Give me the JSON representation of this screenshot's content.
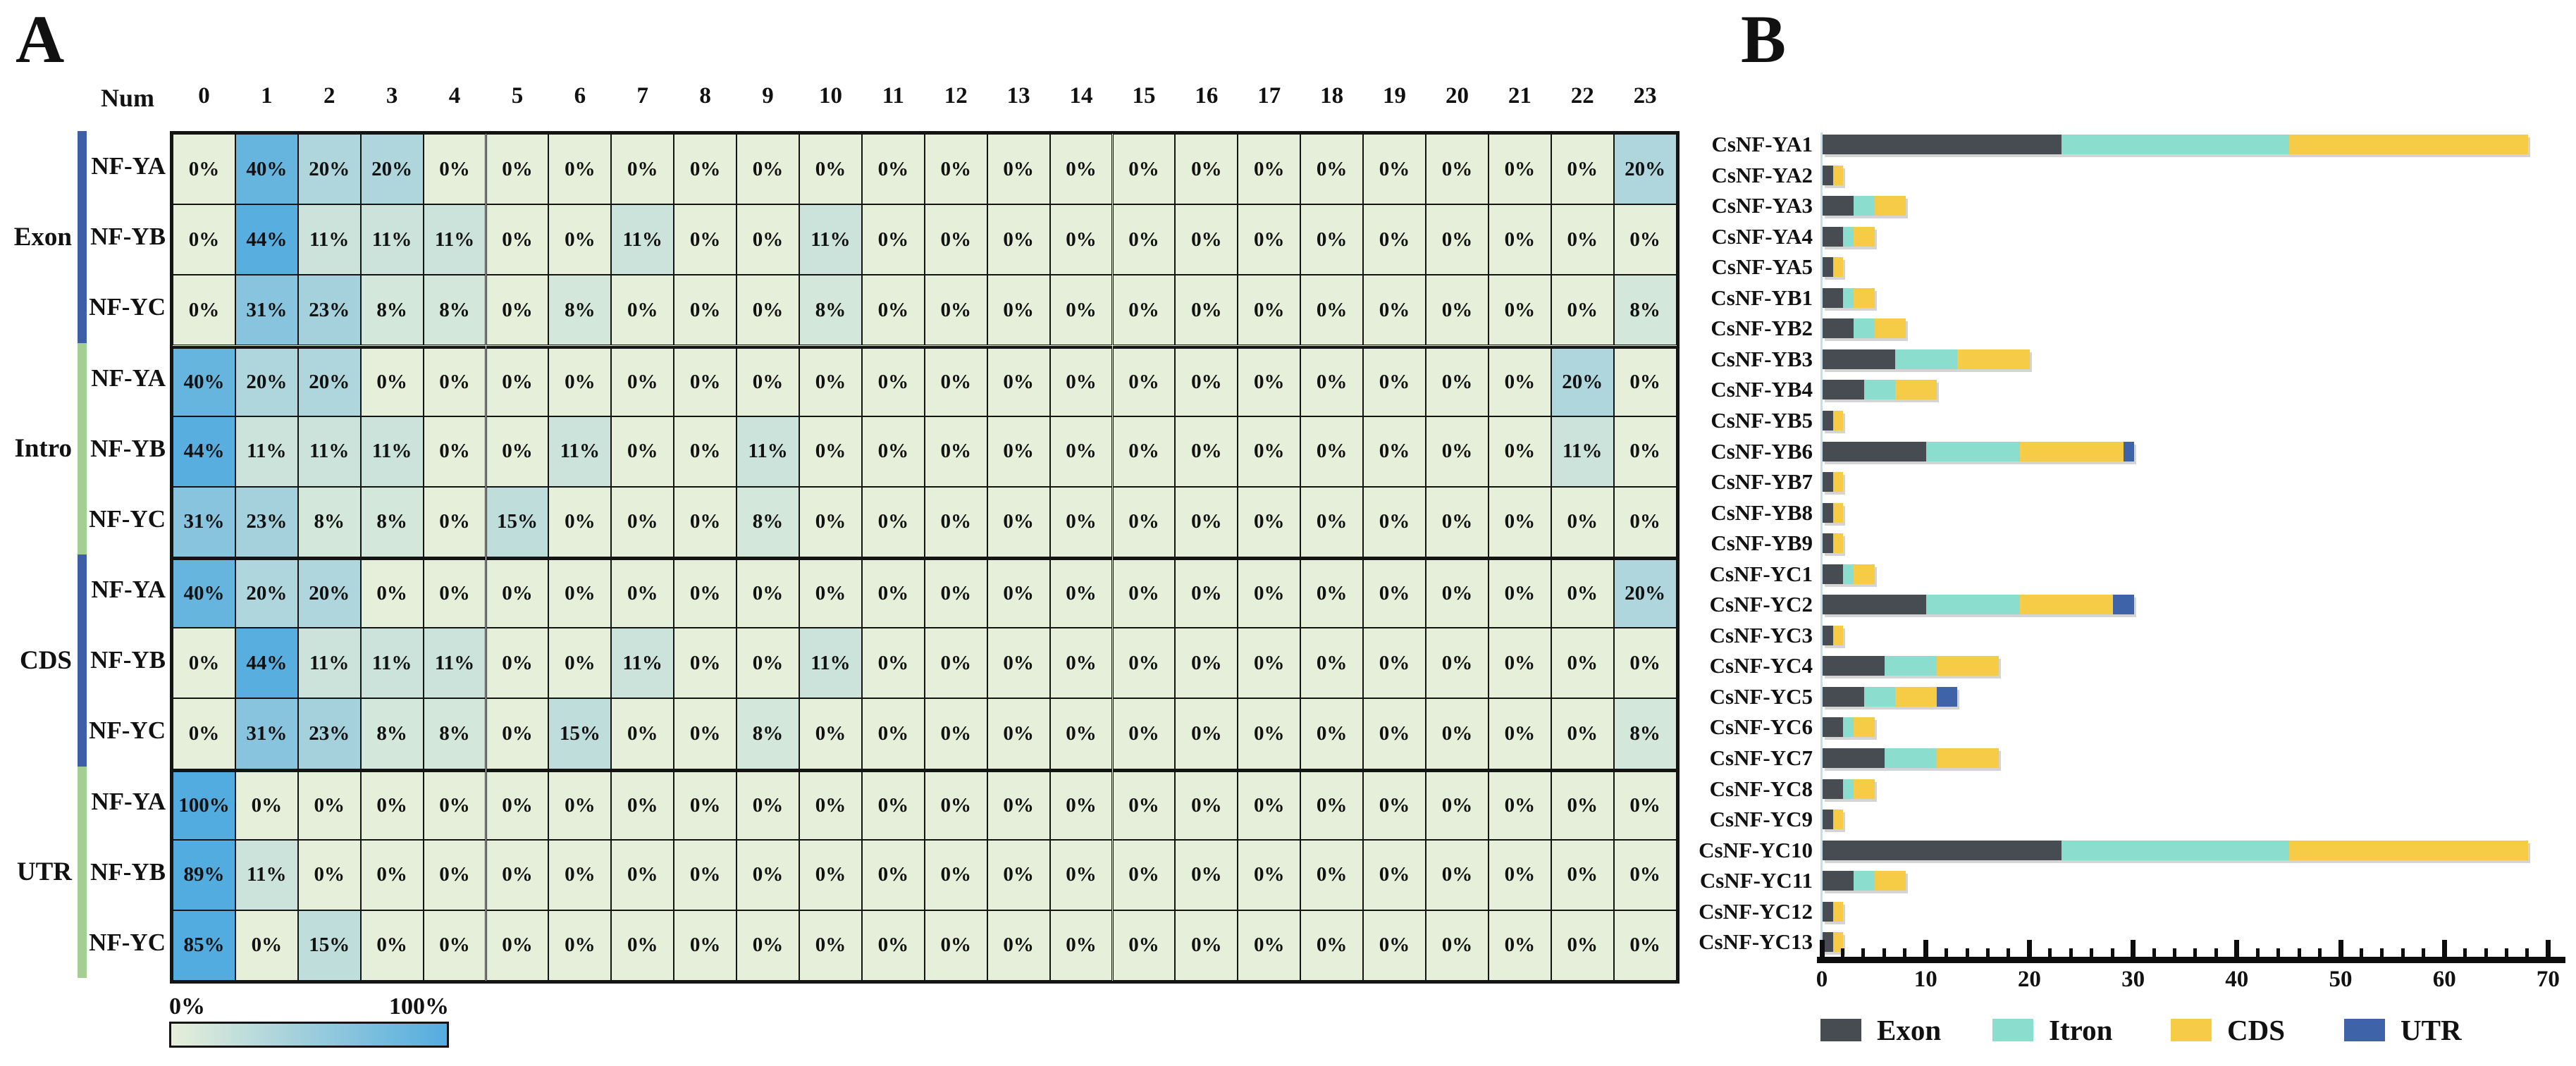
{
  "figure": {
    "panel_a_label": "A",
    "panel_b_label": "B"
  },
  "chart_data": [
    {
      "type": "heatmap",
      "panel_label": "A",
      "corner_label": "Num",
      "columns": [
        0,
        1,
        2,
        3,
        4,
        5,
        6,
        7,
        8,
        9,
        10,
        11,
        12,
        13,
        14,
        15,
        16,
        17,
        18,
        19,
        20,
        21,
        22,
        23
      ],
      "row_groups": [
        {
          "name": "Exon",
          "strip_color": "#3D5FA8"
        },
        {
          "name": "Intro",
          "strip_color": "#A5CF92"
        },
        {
          "name": "CDS",
          "strip_color": "#3D5FA8"
        },
        {
          "name": "UTR",
          "strip_color": "#A5CF92"
        }
      ],
      "rows": [
        {
          "group": "Exon",
          "label": "NF-YA",
          "values": [
            0,
            40,
            20,
            20,
            0,
            0,
            0,
            0,
            0,
            0,
            0,
            0,
            0,
            0,
            0,
            0,
            0,
            0,
            0,
            0,
            0,
            0,
            0,
            20
          ]
        },
        {
          "group": "Exon",
          "label": "NF-YB",
          "values": [
            0,
            44,
            11,
            11,
            11,
            0,
            0,
            11,
            0,
            0,
            11,
            0,
            0,
            0,
            0,
            0,
            0,
            0,
            0,
            0,
            0,
            0,
            0,
            0
          ]
        },
        {
          "group": "Exon",
          "label": "NF-YC",
          "values": [
            0,
            31,
            23,
            8,
            8,
            0,
            8,
            0,
            0,
            0,
            8,
            0,
            0,
            0,
            0,
            0,
            0,
            0,
            0,
            0,
            0,
            0,
            0,
            8
          ]
        },
        {
          "group": "Intro",
          "label": "NF-YA",
          "values": [
            40,
            20,
            20,
            0,
            0,
            0,
            0,
            0,
            0,
            0,
            0,
            0,
            0,
            0,
            0,
            0,
            0,
            0,
            0,
            0,
            0,
            0,
            20,
            0
          ]
        },
        {
          "group": "Intro",
          "label": "NF-YB",
          "values": [
            44,
            11,
            11,
            11,
            0,
            0,
            11,
            0,
            0,
            11,
            0,
            0,
            0,
            0,
            0,
            0,
            0,
            0,
            0,
            0,
            0,
            0,
            11,
            0
          ]
        },
        {
          "group": "Intro",
          "label": "NF-YC",
          "values": [
            31,
            23,
            8,
            8,
            0,
            15,
            0,
            0,
            0,
            8,
            0,
            0,
            0,
            0,
            0,
            0,
            0,
            0,
            0,
            0,
            0,
            0,
            0,
            0
          ]
        },
        {
          "group": "CDS",
          "label": "NF-YA",
          "values": [
            40,
            20,
            20,
            0,
            0,
            0,
            0,
            0,
            0,
            0,
            0,
            0,
            0,
            0,
            0,
            0,
            0,
            0,
            0,
            0,
            0,
            0,
            0,
            20
          ]
        },
        {
          "group": "CDS",
          "label": "NF-YB",
          "values": [
            0,
            44,
            11,
            11,
            11,
            0,
            0,
            11,
            0,
            0,
            11,
            0,
            0,
            0,
            0,
            0,
            0,
            0,
            0,
            0,
            0,
            0,
            0,
            0
          ]
        },
        {
          "group": "CDS",
          "label": "NF-YC",
          "values": [
            0,
            31,
            23,
            8,
            8,
            0,
            15,
            0,
            0,
            8,
            0,
            0,
            0,
            0,
            0,
            0,
            0,
            0,
            0,
            0,
            0,
            0,
            0,
            8
          ]
        },
        {
          "group": "UTR",
          "label": "NF-YA",
          "values": [
            100,
            0,
            0,
            0,
            0,
            0,
            0,
            0,
            0,
            0,
            0,
            0,
            0,
            0,
            0,
            0,
            0,
            0,
            0,
            0,
            0,
            0,
            0,
            0
          ]
        },
        {
          "group": "UTR",
          "label": "NF-YB",
          "values": [
            89,
            11,
            0,
            0,
            0,
            0,
            0,
            0,
            0,
            0,
            0,
            0,
            0,
            0,
            0,
            0,
            0,
            0,
            0,
            0,
            0,
            0,
            0,
            0
          ]
        },
        {
          "group": "UTR",
          "label": "NF-YC",
          "values": [
            85,
            0,
            15,
            0,
            0,
            0,
            0,
            0,
            0,
            0,
            0,
            0,
            0,
            0,
            0,
            0,
            0,
            0,
            0,
            0,
            0,
            0,
            0,
            0
          ]
        }
      ],
      "value_suffix": "%",
      "colorscale": {
        "low": "#E6EFDA",
        "high": "#53ACDF",
        "min_label": "0%",
        "max_label": "100%"
      }
    },
    {
      "type": "bar",
      "panel_label": "B",
      "orientation": "horizontal",
      "stacked": true,
      "categories": [
        "CsNF-YA1",
        "CsNF-YA2",
        "CsNF-YA3",
        "CsNF-YA4",
        "CsNF-YA5",
        "CsNF-YB1",
        "CsNF-YB2",
        "CsNF-YB3",
        "CsNF-YB4",
        "CsNF-YB5",
        "CsNF-YB6",
        "CsNF-YB7",
        "CsNF-YB8",
        "CsNF-YB9",
        "CsNF-YC1",
        "CsNF-YC2",
        "CsNF-YC3",
        "CsNF-YC4",
        "CsNF-YC5",
        "CsNF-YC6",
        "CsNF-YC7",
        "CsNF-YC8",
        "CsNF-YC9",
        "CsNF-YC10",
        "CsNF-YC11",
        "CsNF-YC12",
        "CsNF-YC13"
      ],
      "series": [
        {
          "name": "Exon",
          "color": "#474B52",
          "values": [
            23,
            1,
            3,
            2,
            1,
            2,
            3,
            7,
            4,
            1,
            10,
            1,
            1,
            1,
            2,
            10,
            1,
            6,
            4,
            2,
            6,
            2,
            1,
            23,
            3,
            1,
            1
          ]
        },
        {
          "name": "Itron",
          "color": "#8BDECD",
          "values": [
            22,
            0,
            2,
            1,
            0,
            1,
            2,
            6,
            3,
            0,
            9,
            0,
            0,
            0,
            1,
            9,
            0,
            5,
            3,
            1,
            5,
            1,
            0,
            22,
            2,
            0,
            0
          ]
        },
        {
          "name": "CDS",
          "color": "#F6CB45",
          "values": [
            23,
            1,
            3,
            2,
            1,
            2,
            3,
            7,
            4,
            1,
            10,
            1,
            1,
            1,
            2,
            9,
            1,
            6,
            4,
            2,
            6,
            2,
            1,
            23,
            3,
            1,
            1
          ]
        },
        {
          "name": "UTR",
          "color": "#3E63A8",
          "values": [
            0,
            0,
            0,
            0,
            0,
            0,
            0,
            0,
            0,
            0,
            1,
            0,
            0,
            0,
            0,
            2,
            0,
            0,
            2,
            0,
            0,
            0,
            0,
            0,
            0,
            0,
            0
          ]
        }
      ],
      "xlim": [
        0,
        70
      ],
      "xticks": [
        0,
        10,
        20,
        30,
        40,
        50,
        60,
        70
      ],
      "minor_tick_step": 2,
      "legend_position": "bottom"
    }
  ]
}
